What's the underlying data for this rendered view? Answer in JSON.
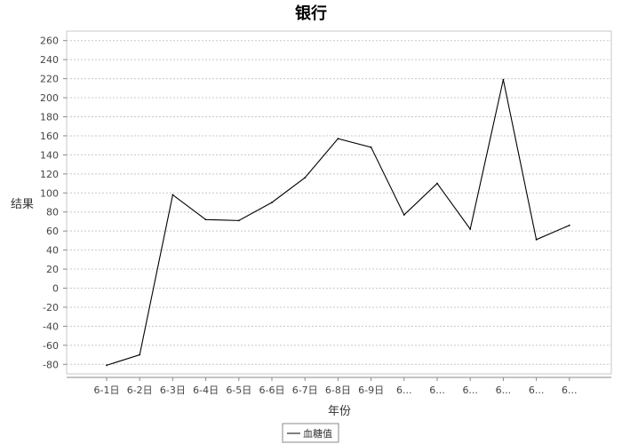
{
  "chart_data": {
    "type": "line",
    "title": "银行",
    "xlabel": "年份",
    "ylabel": "结果",
    "categories": [
      "6-1日",
      "6-2日",
      "6-3日",
      "6-4日",
      "6-5日",
      "6-6日",
      "6-7日",
      "6-8日",
      "6-9日",
      "6...",
      "6...",
      "6...",
      "6...",
      "6...",
      "6..."
    ],
    "series": [
      {
        "name": "血糖值",
        "values": [
          -81,
          -70,
          98,
          72,
          71,
          90,
          116,
          157,
          148,
          77,
          110,
          62,
          219,
          51,
          66
        ],
        "color": "#000000"
      }
    ],
    "ylim": [
      -90,
      270
    ],
    "yticks": [
      -80,
      -60,
      -40,
      -20,
      0,
      20,
      40,
      60,
      80,
      100,
      120,
      140,
      160,
      180,
      200,
      220,
      240,
      260
    ],
    "grid": true,
    "legend": "bottom-center"
  }
}
